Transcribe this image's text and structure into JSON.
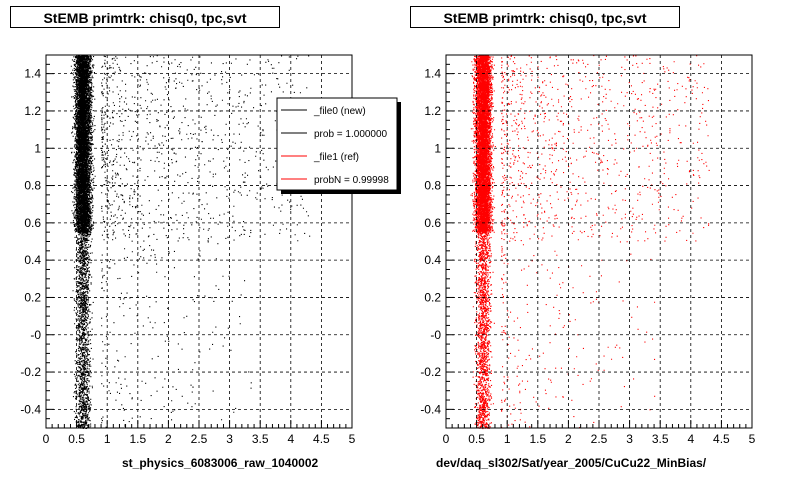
{
  "colors": {
    "new_series": "#000000",
    "ref_series": "#ff0000",
    "frame": "#000000",
    "grid": "#000000",
    "legend_shadow": "#000000"
  },
  "footer": "",
  "chart_data": [
    {
      "type": "scatter",
      "title": "StEMB primtrk: chisq0, tpc,svt",
      "xlabel": "st_physics_6083006_raw_1040002",
      "ylabel": "",
      "xlim": [
        0,
        5
      ],
      "ylim": [
        -0.5,
        1.5
      ],
      "x_ticks": [
        "0",
        "0.5",
        "1",
        "1.5",
        "2",
        "2.5",
        "3",
        "3.5",
        "4",
        "4.5",
        "5"
      ],
      "y_ticks": [
        "-0.4",
        "-0.2",
        "-0",
        "0.2",
        "0.4",
        "0.6",
        "0.8",
        "1",
        "1.2",
        "1.4"
      ],
      "grid": true,
      "series": [
        {
          "name": "_file0 (new)",
          "color": "#000000"
        }
      ],
      "legend": {
        "placement": "top-right",
        "entries": [
          {
            "label": "_file0 (new)",
            "color": "#000000"
          },
          {
            "label": "prob = 1.000000",
            "color": "#000000"
          },
          {
            "label": "_file1 (ref)",
            "color": "#ff0000"
          },
          {
            "label": "probN = 0.99998",
            "color": "#ff0000"
          }
        ]
      },
      "density": {
        "x_core": [
          0.35,
          0.9
        ],
        "x_peak": 0.6,
        "y_dense_range": [
          0.55,
          1.5
        ],
        "y_sparse_range": [
          -0.5,
          0.55
        ]
      }
    },
    {
      "type": "scatter",
      "title": "StEMB primtrk: chisq0, tpc,svt",
      "xlabel": "dev/daq_sl302/Sat/year_2005/CuCu22_MinBias/",
      "ylabel": "",
      "xlim": [
        0,
        5
      ],
      "ylim": [
        -0.5,
        1.5
      ],
      "x_ticks": [
        "0",
        "0.5",
        "1",
        "1.5",
        "2",
        "2.5",
        "3",
        "3.5",
        "4",
        "4.5",
        "5"
      ],
      "y_ticks": [
        "-0.4",
        "-0.2",
        "-0",
        "0.2",
        "0.4",
        "0.6",
        "0.8",
        "1",
        "1.2",
        "1.4"
      ],
      "grid": true,
      "series": [
        {
          "name": "_file1 (ref)",
          "color": "#ff0000"
        }
      ],
      "density": {
        "x_core": [
          0.35,
          0.9
        ],
        "x_peak": 0.6,
        "y_dense_range": [
          0.55,
          1.5
        ],
        "y_sparse_range": [
          -0.5,
          0.55
        ]
      }
    }
  ]
}
